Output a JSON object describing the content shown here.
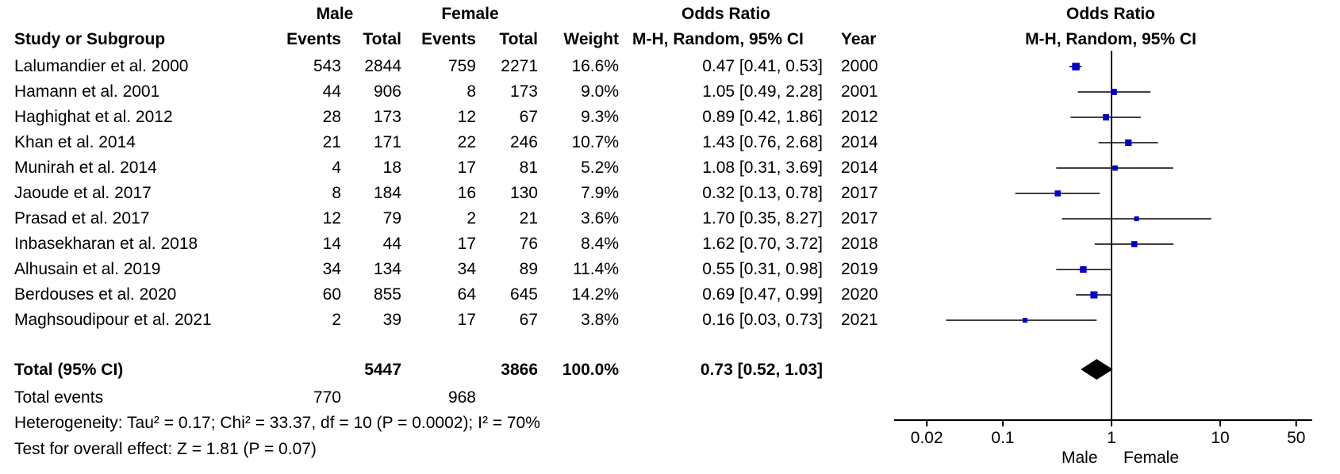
{
  "headers": {
    "group1": "Male",
    "group2": "Female",
    "or_left_top": "Odds Ratio",
    "or_left_sub": "M-H, Random, 95% CI",
    "or_right_top": "Odds Ratio",
    "or_right_sub": "M-H, Random, 95% CI",
    "study": "Study or Subgroup",
    "events1": "Events",
    "total1": "Total",
    "events2": "Events",
    "total2": "Total",
    "weight": "Weight",
    "year": "Year"
  },
  "studies": [
    {
      "name": "Lalumandier et al. 2000",
      "e1": "543",
      "t1": "2844",
      "e2": "759",
      "t2": "2271",
      "weight": "16.6%",
      "ci": "0.47 [0.41, 0.53]",
      "year": "2000"
    },
    {
      "name": "Hamann et al. 2001",
      "e1": "44",
      "t1": "906",
      "e2": "8",
      "t2": "173",
      "weight": "9.0%",
      "ci": "1.05 [0.49, 2.28]",
      "year": "2001"
    },
    {
      "name": "Haghighat et al. 2012",
      "e1": "28",
      "t1": "173",
      "e2": "12",
      "t2": "67",
      "weight": "9.3%",
      "ci": "0.89 [0.42, 1.86]",
      "year": "2012"
    },
    {
      "name": "Khan et al. 2014",
      "e1": "21",
      "t1": "171",
      "e2": "22",
      "t2": "246",
      "weight": "10.7%",
      "ci": "1.43 [0.76, 2.68]",
      "year": "2014"
    },
    {
      "name": "Munirah et al. 2014",
      "e1": "4",
      "t1": "18",
      "e2": "17",
      "t2": "81",
      "weight": "5.2%",
      "ci": "1.08 [0.31, 3.69]",
      "year": "2014"
    },
    {
      "name": "Jaoude et al. 2017",
      "e1": "8",
      "t1": "184",
      "e2": "16",
      "t2": "130",
      "weight": "7.9%",
      "ci": "0.32 [0.13, 0.78]",
      "year": "2017"
    },
    {
      "name": "Prasad et al. 2017",
      "e1": "12",
      "t1": "79",
      "e2": "2",
      "t2": "21",
      "weight": "3.6%",
      "ci": "1.70 [0.35, 8.27]",
      "year": "2017"
    },
    {
      "name": "Inbasekharan et al. 2018",
      "e1": "14",
      "t1": "44",
      "e2": "17",
      "t2": "76",
      "weight": "8.4%",
      "ci": "1.62 [0.70, 3.72]",
      "year": "2018"
    },
    {
      "name": "Alhusain et al. 2019",
      "e1": "34",
      "t1": "134",
      "e2": "34",
      "t2": "89",
      "weight": "11.4%",
      "ci": "0.55 [0.31, 0.98]",
      "year": "2019"
    },
    {
      "name": "Berdouses et al. 2020",
      "e1": "60",
      "t1": "855",
      "e2": "64",
      "t2": "645",
      "weight": "14.2%",
      "ci": "0.69 [0.47, 0.99]",
      "year": "2020"
    },
    {
      "name": "Maghsoudipour et al. 2021",
      "e1": "2",
      "t1": "39",
      "e2": "17",
      "t2": "67",
      "weight": "3.8%",
      "ci": "0.16 [0.03, 0.73]",
      "year": "2021"
    }
  ],
  "total": {
    "label": "Total (95% CI)",
    "t1": "5447",
    "t2": "3866",
    "weight": "100.0%",
    "ci": "0.73 [0.52, 1.03]"
  },
  "total_events": {
    "label": "Total events",
    "e1": "770",
    "e2": "968"
  },
  "heterogeneity": "Heterogeneity: Tau² = 0.17; Chi² = 33.37, df = 10 (P = 0.0002); I² = 70%",
  "overall_effect": "Test for overall effect: Z = 1.81 (P = 0.07)",
  "axis": {
    "favours_left": "Male",
    "favours_right": "Female"
  },
  "colors": {
    "marker": "#0000cc",
    "line": "#000000",
    "diamond": "#000000"
  },
  "chart_data": {
    "type": "forest",
    "xscale": "log",
    "xlim": [
      0.01,
      70
    ],
    "xticks": [
      0.02,
      0.1,
      1,
      10,
      50
    ],
    "xtick_labels": [
      "0.02",
      "0.1",
      "1",
      "10",
      "50"
    ],
    "reference_line": 1,
    "points": [
      {
        "study": "Lalumandier et al. 2000",
        "or": 0.47,
        "lo": 0.41,
        "hi": 0.53,
        "weight": 16.6
      },
      {
        "study": "Hamann et al. 2001",
        "or": 1.05,
        "lo": 0.49,
        "hi": 2.28,
        "weight": 9.0
      },
      {
        "study": "Haghighat et al. 2012",
        "or": 0.89,
        "lo": 0.42,
        "hi": 1.86,
        "weight": 9.3
      },
      {
        "study": "Khan et al. 2014",
        "or": 1.43,
        "lo": 0.76,
        "hi": 2.68,
        "weight": 10.7
      },
      {
        "study": "Munirah et al. 2014",
        "or": 1.08,
        "lo": 0.31,
        "hi": 3.69,
        "weight": 5.2
      },
      {
        "study": "Jaoude et al. 2017",
        "or": 0.32,
        "lo": 0.13,
        "hi": 0.78,
        "weight": 7.9
      },
      {
        "study": "Prasad et al. 2017",
        "or": 1.7,
        "lo": 0.35,
        "hi": 8.27,
        "weight": 3.6
      },
      {
        "study": "Inbasekharan et al. 2018",
        "or": 1.62,
        "lo": 0.7,
        "hi": 3.72,
        "weight": 8.4
      },
      {
        "study": "Alhusain et al. 2019",
        "or": 0.55,
        "lo": 0.31,
        "hi": 0.98,
        "weight": 11.4
      },
      {
        "study": "Berdouses et al. 2020",
        "or": 0.69,
        "lo": 0.47,
        "hi": 0.99,
        "weight": 14.2
      },
      {
        "study": "Maghsoudipour et al. 2021",
        "or": 0.16,
        "lo": 0.03,
        "hi": 0.73,
        "weight": 3.8
      }
    ],
    "pooled": {
      "or": 0.73,
      "lo": 0.52,
      "hi": 1.03
    }
  }
}
